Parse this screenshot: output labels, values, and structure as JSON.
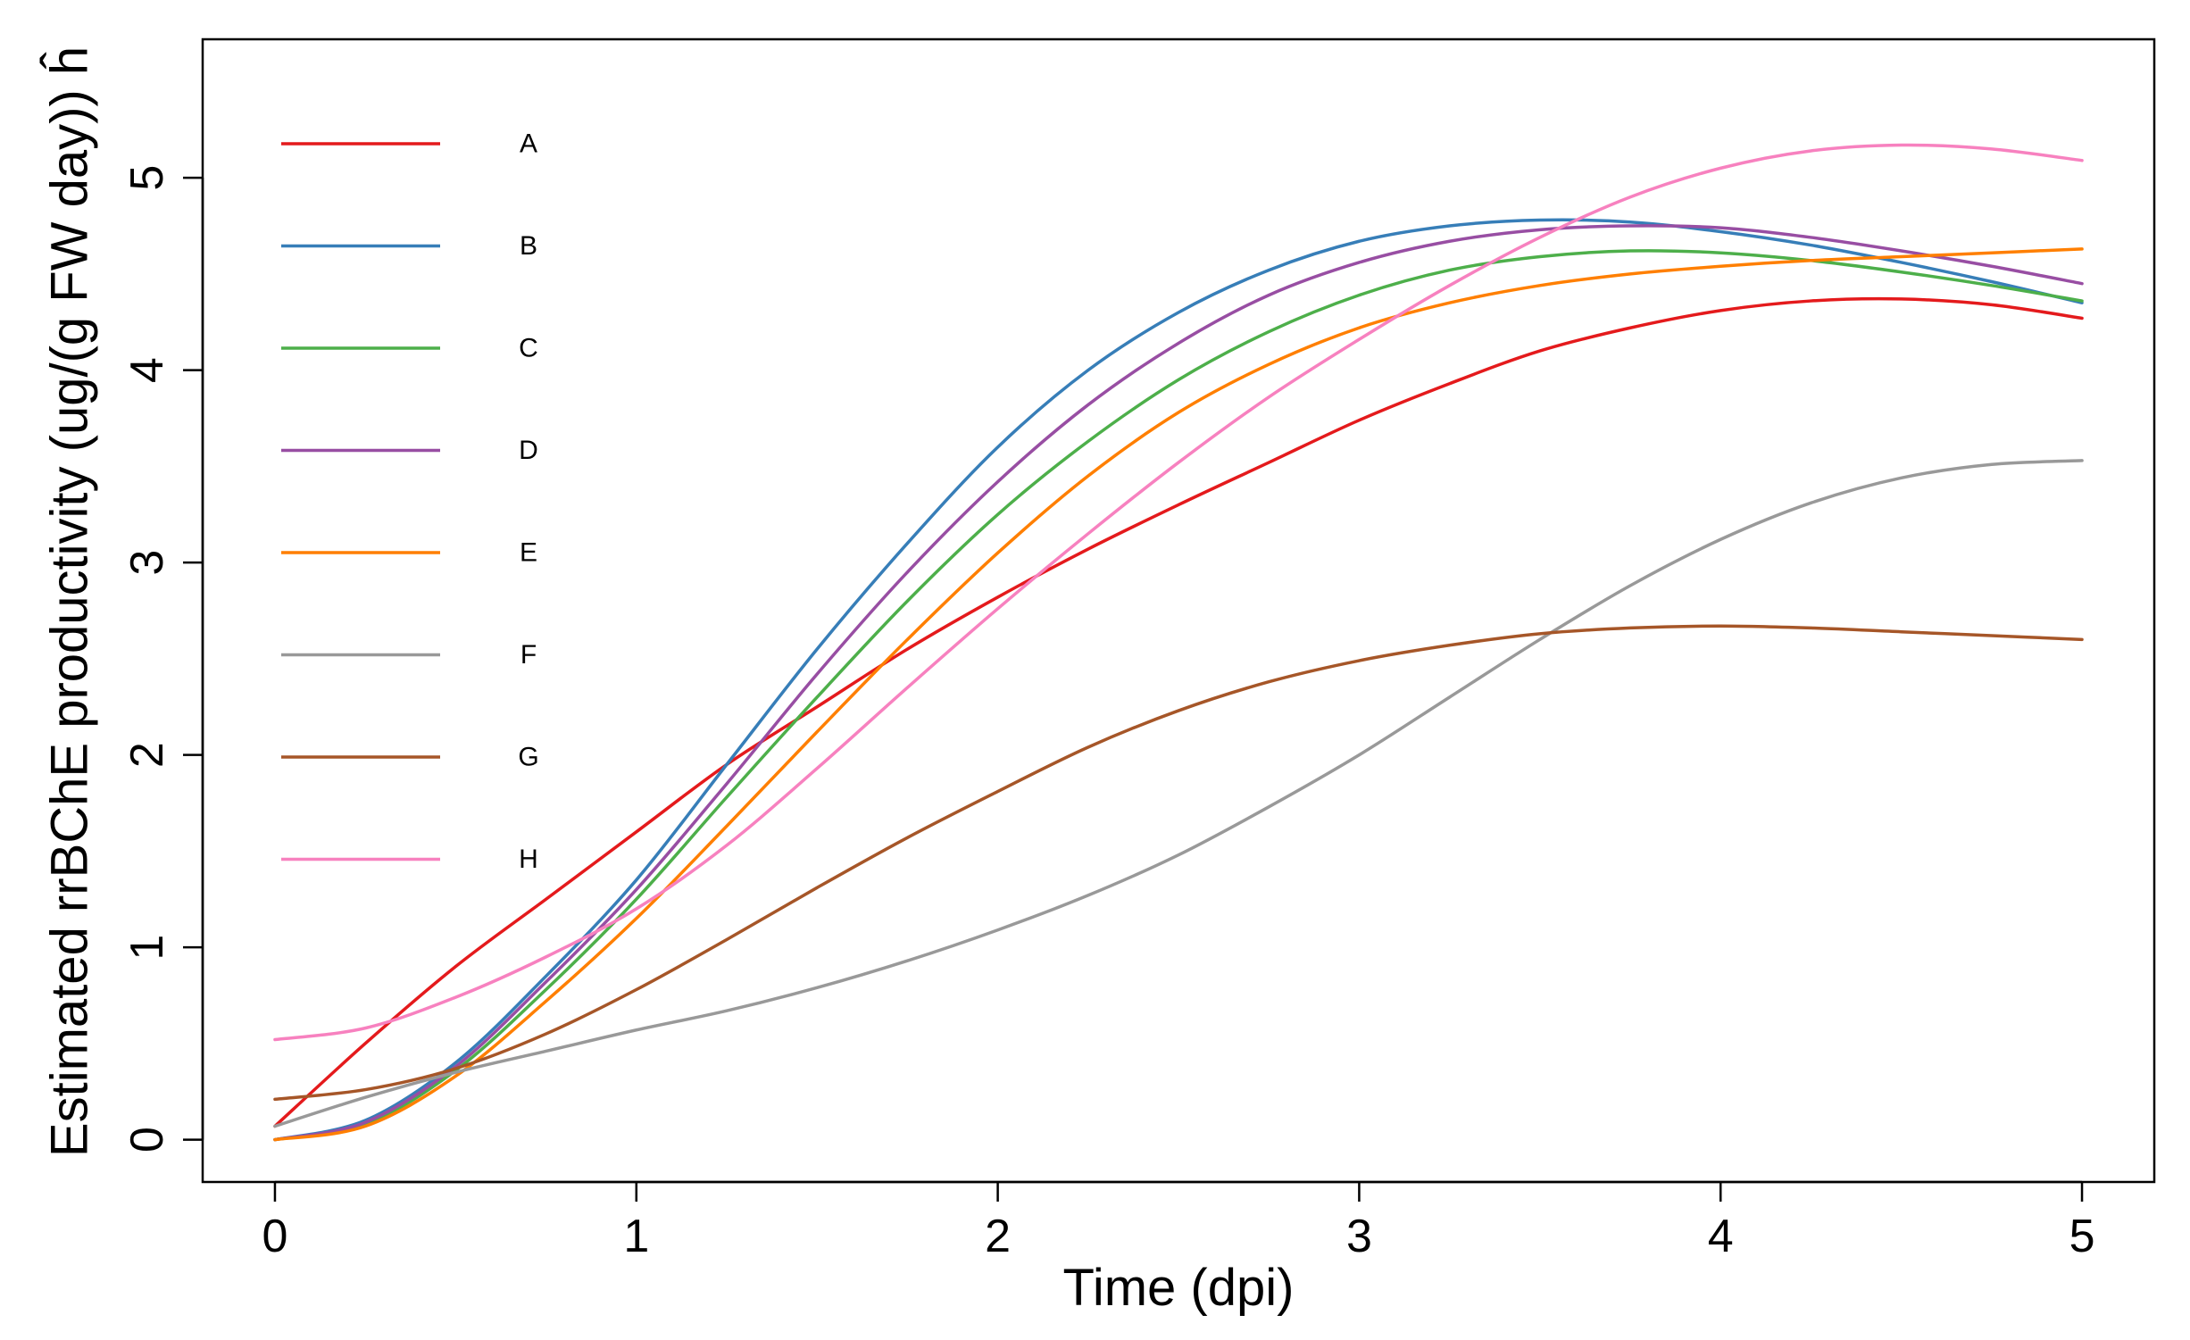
{
  "chart_data": {
    "type": "line",
    "title": "",
    "xlabel": "Time (dpi)",
    "ylabel": "Estimated rrBChE productivity (ug/(g FW day)) ĥ",
    "xlim": [
      -0.2,
      5.2
    ],
    "ylim": [
      -0.22,
      5.72
    ],
    "x_ticks": [
      0,
      1,
      2,
      3,
      4,
      5
    ],
    "y_ticks": [
      0,
      1,
      2,
      3,
      4,
      5
    ],
    "x_tick_labels": [
      "0",
      "1",
      "2",
      "3",
      "4",
      "5"
    ],
    "y_tick_labels": [
      "0",
      "1",
      "2",
      "3",
      "4",
      "5"
    ],
    "grid": false,
    "legend_position": "top-left",
    "x": [
      0,
      0.25,
      0.5,
      0.75,
      1,
      1.25,
      1.5,
      1.75,
      2,
      2.25,
      2.5,
      2.75,
      3,
      3.25,
      3.5,
      3.75,
      4,
      4.25,
      4.5,
      4.75,
      5
    ],
    "series": [
      {
        "name": "A",
        "color": "#e41a1c",
        "values": [
          0.07,
          0.5,
          0.9,
          1.25,
          1.6,
          1.95,
          2.25,
          2.55,
          2.82,
          3.07,
          3.3,
          3.52,
          3.74,
          3.93,
          4.1,
          4.22,
          4.31,
          4.36,
          4.37,
          4.34,
          4.27
        ]
      },
      {
        "name": "B",
        "color": "#377eb8",
        "values": [
          0.0,
          0.1,
          0.4,
          0.85,
          1.35,
          1.95,
          2.55,
          3.1,
          3.6,
          4.0,
          4.3,
          4.52,
          4.67,
          4.75,
          4.78,
          4.77,
          4.72,
          4.65,
          4.56,
          4.46,
          4.35
        ]
      },
      {
        "name": "C",
        "color": "#4daf4a",
        "values": [
          0.0,
          0.08,
          0.36,
          0.78,
          1.25,
          1.78,
          2.3,
          2.8,
          3.25,
          3.63,
          3.95,
          4.2,
          4.39,
          4.52,
          4.59,
          4.62,
          4.61,
          4.57,
          4.51,
          4.44,
          4.36
        ]
      },
      {
        "name": "D",
        "color": "#984ea3",
        "values": [
          0.0,
          0.09,
          0.38,
          0.82,
          1.3,
          1.85,
          2.42,
          2.95,
          3.42,
          3.82,
          4.14,
          4.39,
          4.56,
          4.67,
          4.73,
          4.75,
          4.74,
          4.69,
          4.62,
          4.54,
          4.45
        ]
      },
      {
        "name": "E",
        "color": "#ff7f00",
        "values": [
          0.0,
          0.07,
          0.33,
          0.72,
          1.15,
          1.63,
          2.12,
          2.6,
          3.05,
          3.45,
          3.78,
          4.03,
          4.22,
          4.35,
          4.44,
          4.5,
          4.54,
          4.57,
          4.59,
          4.61,
          4.63
        ]
      },
      {
        "name": "F",
        "color": "#999999",
        "values": [
          0.07,
          0.22,
          0.35,
          0.46,
          0.57,
          0.67,
          0.79,
          0.93,
          1.09,
          1.27,
          1.48,
          1.73,
          2.0,
          2.3,
          2.6,
          2.88,
          3.12,
          3.31,
          3.44,
          3.51,
          3.53
        ]
      },
      {
        "name": "G",
        "color": "#a65628",
        "values": [
          0.21,
          0.26,
          0.37,
          0.55,
          0.78,
          1.04,
          1.31,
          1.57,
          1.81,
          2.04,
          2.23,
          2.38,
          2.49,
          2.57,
          2.63,
          2.66,
          2.67,
          2.66,
          2.64,
          2.62,
          2.6
        ]
      },
      {
        "name": "H",
        "color": "#f781bf",
        "values": [
          0.52,
          0.58,
          0.74,
          0.95,
          1.2,
          1.53,
          1.93,
          2.35,
          2.76,
          3.15,
          3.52,
          3.86,
          4.16,
          4.44,
          4.69,
          4.9,
          5.05,
          5.14,
          5.17,
          5.15,
          5.09
        ]
      }
    ]
  }
}
